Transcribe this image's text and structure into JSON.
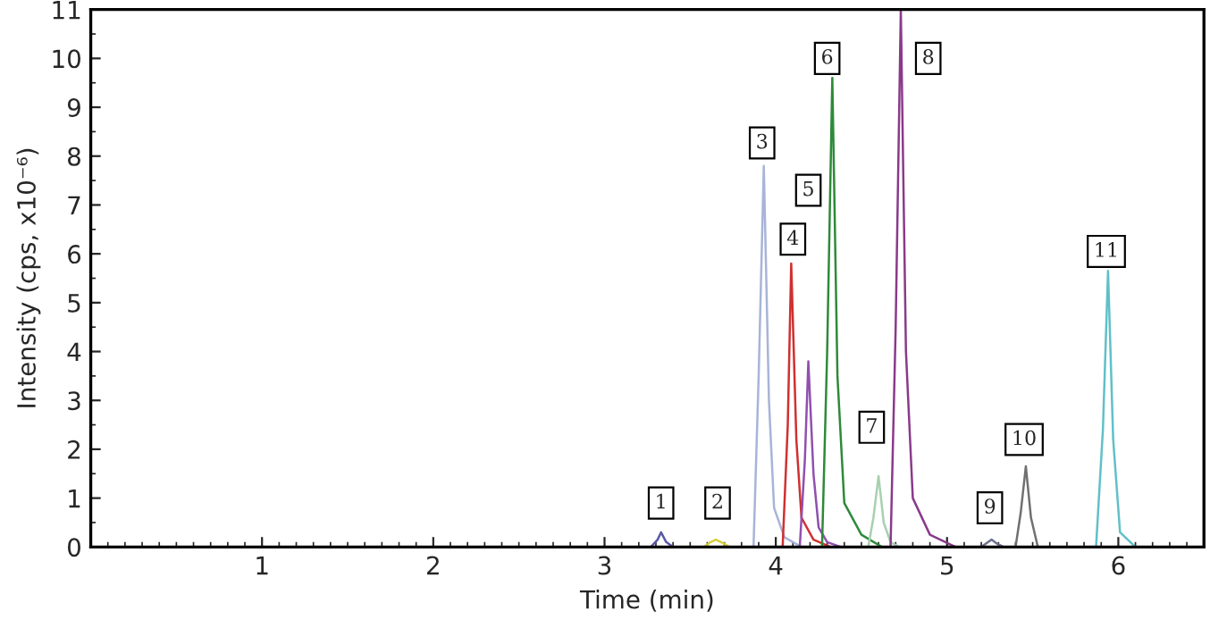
{
  "chart_data": {
    "type": "line",
    "xlabel": "Time (min)",
    "ylabel": "Intensity (cps, x10⁻⁶)",
    "xlim": [
      0,
      6.5
    ],
    "ylim": [
      0,
      11
    ],
    "xticks": [
      1,
      2,
      3,
      4,
      5,
      6
    ],
    "yticks": [
      0,
      1,
      2,
      3,
      4,
      5,
      6,
      7,
      8,
      9,
      10,
      11
    ],
    "grid": false,
    "legend": false,
    "marker": "none",
    "line_style": "solid",
    "series": [
      {
        "color": "#5a5aa8",
        "x": [
          3.27,
          3.31,
          3.33,
          3.36,
          3.4
        ],
        "values": [
          0,
          0.15,
          0.3,
          0.1,
          0
        ]
      },
      {
        "color": "#d8d040",
        "x": [
          3.58,
          3.62,
          3.65,
          3.69,
          3.73
        ],
        "values": [
          0,
          0.1,
          0.15,
          0.08,
          0
        ]
      },
      {
        "color": "#a8b4d8",
        "x": [
          3.87,
          3.9,
          3.93,
          3.96,
          3.99,
          4.05,
          4.15
        ],
        "values": [
          0,
          3.5,
          7.8,
          3.0,
          0.8,
          0.2,
          0
        ]
      },
      {
        "color": "#d03030",
        "x": [
          4.04,
          4.07,
          4.09,
          4.12,
          4.15,
          4.22,
          4.32
        ],
        "values": [
          0,
          2.5,
          5.8,
          2.2,
          0.6,
          0.15,
          0
        ]
      },
      {
        "color": "#9050b0",
        "x": [
          4.14,
          4.17,
          4.19,
          4.22,
          4.25,
          4.3,
          4.38
        ],
        "values": [
          0,
          1.8,
          3.8,
          1.5,
          0.4,
          0.1,
          0
        ]
      },
      {
        "color": "#2e8a3a",
        "x": [
          4.27,
          4.3,
          4.33,
          4.36,
          4.4,
          4.5,
          4.62
        ],
        "values": [
          0,
          4.0,
          9.6,
          3.5,
          0.9,
          0.25,
          0
        ]
      },
      {
        "color": "#a8d0b0",
        "x": [
          4.54,
          4.57,
          4.6,
          4.63,
          4.67,
          4.72
        ],
        "values": [
          0,
          0.6,
          1.45,
          0.5,
          0.1,
          0
        ]
      },
      {
        "color": "#8a3a8a",
        "x": [
          4.67,
          4.7,
          4.73,
          4.76,
          4.8,
          4.9,
          5.05
        ],
        "values": [
          0,
          4.5,
          11,
          4.0,
          1.0,
          0.25,
          0
        ]
      },
      {
        "color": "#707090",
        "x": [
          5.2,
          5.24,
          5.26,
          5.29,
          5.33
        ],
        "values": [
          0,
          0.1,
          0.15,
          0.07,
          0
        ]
      },
      {
        "color": "#707070",
        "x": [
          5.4,
          5.43,
          5.46,
          5.49,
          5.53
        ],
        "values": [
          0,
          0.7,
          1.65,
          0.6,
          0
        ]
      },
      {
        "color": "#60c0c8",
        "x": [
          5.87,
          5.91,
          5.94,
          5.97,
          6.01,
          6.1
        ],
        "values": [
          0,
          2.4,
          5.65,
          2.2,
          0.3,
          0
        ]
      }
    ],
    "annotations": [
      {
        "text": "1",
        "x": 3.33,
        "y": 0.9
      },
      {
        "text": "2",
        "x": 3.66,
        "y": 0.9
      },
      {
        "text": "3",
        "x": 3.92,
        "y": 8.27
      },
      {
        "text": "4",
        "x": 4.1,
        "y": 6.3
      },
      {
        "text": "5",
        "x": 4.19,
        "y": 7.3
      },
      {
        "text": "6",
        "x": 4.3,
        "y": 10.0
      },
      {
        "text": "7",
        "x": 4.56,
        "y": 2.45
      },
      {
        "text": "8",
        "x": 4.89,
        "y": 10.0
      },
      {
        "text": "9",
        "x": 5.25,
        "y": 0.8
      },
      {
        "text": "10",
        "x": 5.45,
        "y": 2.2
      },
      {
        "text": "11",
        "x": 5.93,
        "y": 6.05
      }
    ]
  }
}
